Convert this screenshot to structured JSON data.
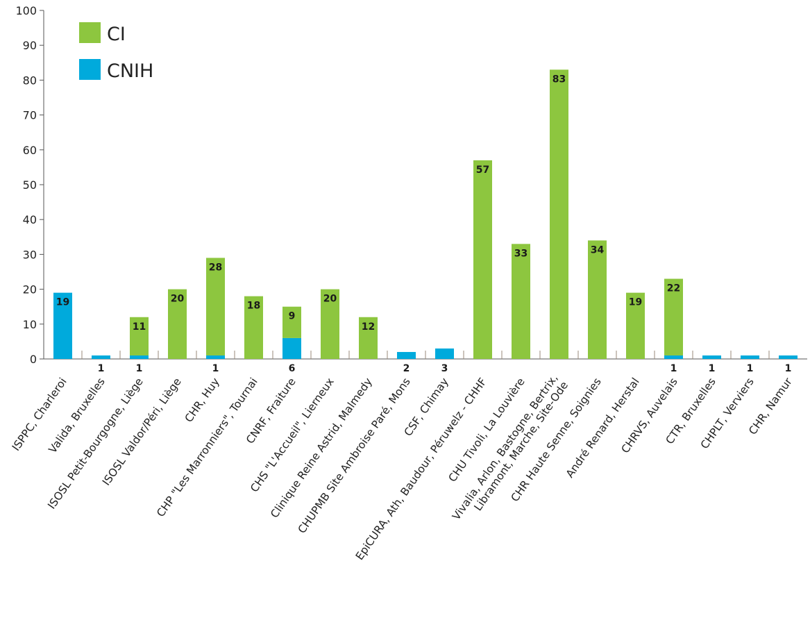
{
  "chart_data": {
    "type": "bar",
    "stacked": true,
    "categories": [
      "ISPPC, Charleroi",
      "Valida, Bruxelles",
      "ISOSL Petit-Bourgogne, Liège",
      "ISOSL Valdor/Péri, Liège",
      "CHR, Huy",
      "CHP \"Les Marronniers\", Tournai",
      "CNRF, Fraiture",
      "CHS \"L'Accueil\", Lierneux",
      "Clinique Reine Astrid, Malmedy",
      "CHUPMB Site Ambroise Paré, Mons",
      "CSF, Chimay",
      "EpiCURA, Ath, Baudour, Péruwelz - CHHF",
      "CHU Tivoli, La Louvière",
      "Vivalia, Arlon, Bastogne, Bertrix,|Libramont, Marche, Site-Ode",
      "CHR Haute Senne, Soignies",
      "André Renard, Herstal",
      "CHRVS, Auvelais",
      "CTR, Bruxelles",
      "CHPLT, Verviers",
      "CHR, Namur"
    ],
    "series": [
      {
        "name": "CNIH",
        "color": "#00aadc",
        "values": [
          19,
          1,
          1,
          0,
          1,
          0,
          6,
          0,
          0,
          2,
          3,
          0,
          0,
          0,
          0,
          0,
          1,
          1,
          1,
          1
        ],
        "labels": [
          "19",
          "1",
          "1",
          "",
          "1",
          "",
          "6",
          "",
          "",
          "2",
          "3",
          "",
          "",
          "",
          "",
          "",
          "1",
          "1",
          "1",
          "1"
        ]
      },
      {
        "name": "CI",
        "color": "#8dc63f",
        "values": [
          0,
          0,
          11,
          20,
          28,
          18,
          9,
          20,
          12,
          0,
          0,
          57,
          33,
          83,
          34,
          19,
          22,
          0,
          0,
          0
        ],
        "labels": [
          "",
          "",
          "11",
          "20",
          "28",
          "18",
          "9",
          "20",
          "12",
          "",
          "",
          "57",
          "33",
          "83",
          "34",
          "19",
          "22",
          "",
          "",
          ""
        ]
      }
    ],
    "yticks": [
      "0",
      "10",
      "20",
      "30",
      "40",
      "50",
      "60",
      "70",
      "80",
      "90",
      "100"
    ],
    "ylim": [
      0,
      100
    ],
    "legend": {
      "position": "top-left",
      "items": [
        {
          "label": "CI",
          "color": "#8dc63f"
        },
        {
          "label": "CNIH",
          "color": "#00aadc"
        }
      ]
    },
    "grid": false
  }
}
